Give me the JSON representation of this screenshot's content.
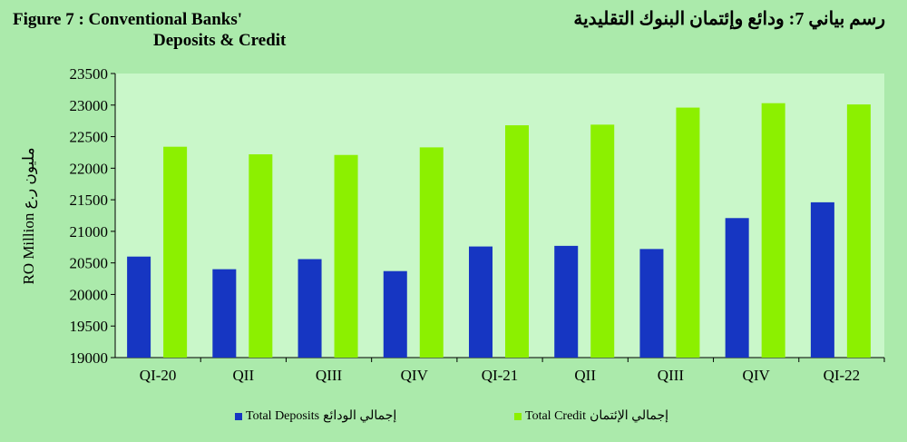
{
  "header": {
    "title_en_line1": "Figure 7 : Conventional  Banks'",
    "title_en_line2": "Deposits & Credit",
    "title_ar": "رسم بياني 7: ودائع وإئتمان البنوك التقليدية"
  },
  "chart_data": {
    "type": "bar",
    "title": "Figure 7 : Conventional Banks' Deposits & Credit",
    "xlabel": "",
    "ylabel": "RO Million",
    "ylabel_ar": "مليون ر.ع",
    "ylim": [
      19000,
      23500
    ],
    "yticks": [
      19000,
      19500,
      20000,
      20500,
      21000,
      21500,
      22000,
      22500,
      23000,
      23500
    ],
    "grid": false,
    "legend_position": "bottom",
    "categories": [
      "QI-20",
      "QII",
      "QIII",
      "QIV",
      "QI-21",
      "QII",
      "QIII",
      "QIV",
      "QI-22"
    ],
    "series": [
      {
        "name": "Total Deposits",
        "name_ar": "إجمالي الودائع",
        "color": "#1636c2",
        "values": [
          20600,
          20400,
          20560,
          20370,
          20760,
          20770,
          20720,
          21210,
          21460
        ]
      },
      {
        "name": "Total Credit",
        "name_ar": "إجمالي الإئتمان",
        "color": "#8cf000",
        "values": [
          22340,
          22220,
          22210,
          22330,
          22680,
          22690,
          22960,
          23030,
          23010
        ]
      }
    ]
  }
}
